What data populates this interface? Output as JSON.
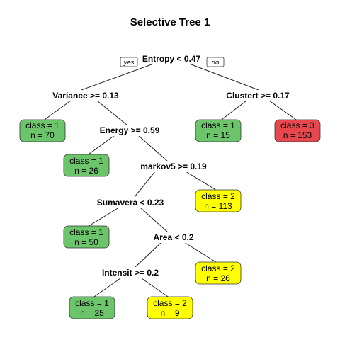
{
  "title": "Selective Tree 1",
  "root_labels": {
    "yes": "yes",
    "no": "no"
  },
  "colors": {
    "class_1": "#6cc56b",
    "class_2": "#ffff00",
    "class_3": "#e8474d"
  },
  "splits": {
    "entropy": "Entropy < 0.47",
    "variance": "Variance >= 0.13",
    "clustert": "Clustert >= 0.17",
    "energy": "Energy >= 0.59",
    "markov5": "markov5 >= 0.19",
    "sumavera": "Sumavera < 0.23",
    "area": "Area < 0.2",
    "intensit": "Intensit >= 0.2"
  },
  "leaves": {
    "l_70": {
      "class_text": "class =  1",
      "n_text": "n =  70",
      "cls": "1"
    },
    "l_26a": {
      "class_text": "class =  1",
      "n_text": "n =  26",
      "cls": "1"
    },
    "l_50": {
      "class_text": "class =  1",
      "n_text": "n =  50",
      "cls": "1"
    },
    "l_25": {
      "class_text": "class =  1",
      "n_text": "n =  25",
      "cls": "1"
    },
    "l_9": {
      "class_text": "class =  2",
      "n_text": "n =  9",
      "cls": "2"
    },
    "l_26b": {
      "class_text": "class =  2",
      "n_text": "n =  26",
      "cls": "2"
    },
    "l_113": {
      "class_text": "class =  2",
      "n_text": "n =  113",
      "cls": "2"
    },
    "l_15": {
      "class_text": "class =  1",
      "n_text": "n =  15",
      "cls": "1"
    },
    "l_153": {
      "class_text": "class =  3",
      "n_text": "n =  153",
      "cls": "3"
    }
  }
}
